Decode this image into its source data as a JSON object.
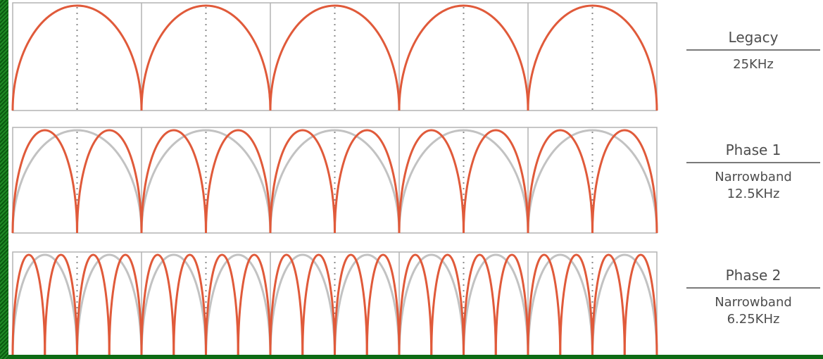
{
  "rows": [
    {
      "id": "legacy",
      "title": "Legacy",
      "subtitle": [
        "25KHz"
      ],
      "spacing_khz": 25
    },
    {
      "id": "phase1",
      "title": "Phase 1",
      "subtitle": [
        "Narrowband",
        "12.5KHz"
      ],
      "spacing_khz": 12.5
    },
    {
      "id": "phase2",
      "title": "Phase 2",
      "subtitle": [
        "Narrowband",
        "6.25KHz"
      ],
      "spacing_khz": 6.25
    }
  ],
  "colors": {
    "background": "#0d6b14",
    "panel": "#ffffff",
    "channel_curve": "#e05a3a",
    "previous_curve": "#c2c2c2",
    "grid": "#b3b3b3",
    "center_dots": "#8a8a8a",
    "label_text": "#4d4d4d"
  }
}
